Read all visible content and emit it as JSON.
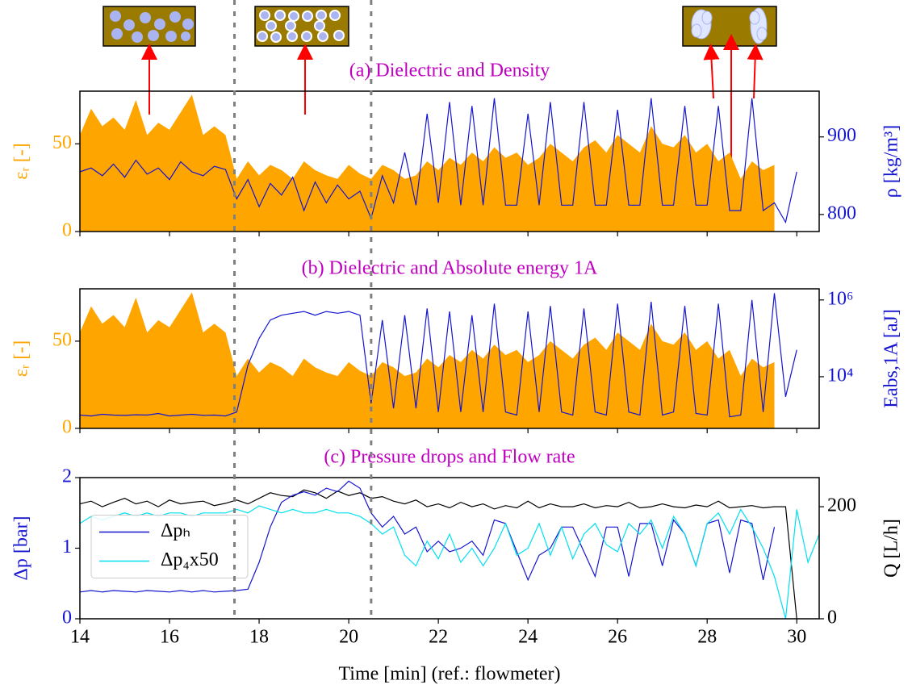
{
  "chart_data": [
    {
      "type": "line",
      "title": "(a) Dielectric and Density",
      "title_color": "#c000c0",
      "ylabel": "εᵣ [-]",
      "y2label": "ρ [kg/m³]",
      "x": [
        14,
        14.25,
        14.5,
        14.75,
        15,
        15.25,
        15.5,
        15.75,
        16,
        16.25,
        16.5,
        16.75,
        17,
        17.25,
        17.5,
        17.75,
        18,
        18.25,
        18.5,
        18.75,
        19,
        19.25,
        19.5,
        19.75,
        20,
        20.25,
        20.5,
        20.75,
        21,
        21.25,
        21.5,
        21.75,
        22,
        22.25,
        22.5,
        22.75,
        23,
        23.25,
        23.5,
        23.75,
        24,
        24.25,
        24.5,
        24.75,
        25,
        25.25,
        25.5,
        25.75,
        26,
        26.25,
        26.5,
        26.75,
        27,
        27.25,
        27.5,
        27.75,
        28,
        28.25,
        28.5,
        28.75,
        29,
        29.25,
        29.5,
        29.75,
        30,
        30.25,
        30.5
      ],
      "xlim": [
        14,
        30.5
      ],
      "ylim": [
        0,
        80
      ],
      "yticks": [
        0,
        50
      ],
      "y2lim": [
        778,
        959
      ],
      "y2ticks": [
        800,
        900
      ],
      "vlines": [
        17.45,
        20.5
      ],
      "series": [
        {
          "color": "#ffa500",
          "fill": true,
          "values": [
            55,
            70,
            60,
            65,
            58,
            75,
            55,
            62,
            58,
            68,
            78,
            55,
            60,
            55,
            30,
            40,
            32,
            38,
            35,
            30,
            40,
            35,
            32,
            30,
            38,
            33,
            30,
            38,
            35,
            30,
            32,
            40,
            35,
            42,
            38,
            45,
            40,
            48,
            42,
            45,
            38,
            42,
            50,
            45,
            40,
            48,
            52,
            45,
            55,
            50,
            45,
            60,
            50,
            48,
            55,
            45,
            50,
            40,
            45,
            30,
            40,
            35,
            38,
            null,
            null,
            null,
            null
          ]
        },
        {
          "color": "#1515d0",
          "axis": "y2",
          "values": [
            855,
            860,
            850,
            865,
            848,
            870,
            852,
            860,
            845,
            868,
            855,
            850,
            862,
            858,
            820,
            845,
            810,
            840,
            825,
            848,
            805,
            842,
            815,
            838,
            820,
            830,
            795,
            850,
            815,
            880,
            812,
            930,
            815,
            945,
            812,
            940,
            812,
            950,
            812,
            812,
            930,
            812,
            945,
            812,
            812,
            945,
            812,
            812,
            935,
            812,
            812,
            950,
            812,
            812,
            940,
            812,
            812,
            940,
            805,
            805,
            950,
            805,
            815,
            790,
            855,
            null,
            null
          ]
        }
      ]
    },
    {
      "type": "line",
      "title": "(b) Dielectric and Absolute energy 1A",
      "title_color": "#c000c0",
      "ylabel": "εᵣ [-]",
      "y2label": "Eabs,1A [aJ]",
      "x": [
        14,
        14.25,
        14.5,
        14.75,
        15,
        15.25,
        15.5,
        15.75,
        16,
        16.25,
        16.5,
        16.75,
        17,
        17.25,
        17.5,
        17.75,
        18,
        18.25,
        18.5,
        18.75,
        19,
        19.25,
        19.5,
        19.75,
        20,
        20.25,
        20.5,
        20.75,
        21,
        21.25,
        21.5,
        21.75,
        22,
        22.25,
        22.5,
        22.75,
        23,
        23.25,
        23.5,
        23.75,
        24,
        24.25,
        24.5,
        24.75,
        25,
        25.25,
        25.5,
        25.75,
        26,
        26.25,
        26.5,
        26.75,
        27,
        27.25,
        27.5,
        27.75,
        28,
        28.25,
        28.5,
        28.75,
        29,
        29.25,
        29.5,
        29.75,
        30,
        30.25,
        30.5
      ],
      "xlim": [
        14,
        30.5
      ],
      "ylim": [
        0,
        80
      ],
      "yticks": [
        0,
        50
      ],
      "y2lim": [
        450,
        1950000
      ],
      "y2log": true,
      "y2ticks": [
        {
          "value": 10000,
          "label": "10⁴"
        },
        {
          "value": 1000000,
          "label": "10⁶"
        }
      ],
      "series": [
        {
          "color": "#ffa500",
          "fill": true,
          "values": [
            55,
            70,
            60,
            65,
            58,
            75,
            55,
            62,
            58,
            68,
            78,
            55,
            60,
            55,
            30,
            40,
            32,
            38,
            35,
            30,
            40,
            35,
            32,
            30,
            38,
            33,
            30,
            38,
            35,
            30,
            32,
            40,
            35,
            42,
            38,
            45,
            40,
            48,
            42,
            45,
            38,
            42,
            50,
            45,
            40,
            48,
            52,
            45,
            55,
            50,
            45,
            60,
            50,
            48,
            55,
            45,
            50,
            40,
            45,
            30,
            40,
            35,
            38,
            null,
            null,
            null,
            null
          ]
        },
        {
          "color": "#1515d0",
          "axis": "y2",
          "values": [
            1000,
            950,
            1050,
            1000,
            980,
            1020,
            1000,
            1100,
            950,
            1000,
            1050,
            980,
            1000,
            950,
            1200,
            20000,
            100000,
            300000,
            400000,
            450000,
            500000,
            400000,
            500000,
            450000,
            500000,
            400000,
            2000,
            300000,
            1500,
            400000,
            1500,
            600000,
            1200,
            500000,
            1200,
            400000,
            1200,
            800000,
            1200,
            1000,
            500000,
            1200,
            700000,
            1200,
            1000,
            600000,
            1200,
            1000,
            800000,
            1200,
            1000,
            900000,
            1000,
            1200,
            700000,
            1100,
            1000,
            800000,
            900,
            1000,
            1000000,
            1200,
            1500000,
            3000,
            50000,
            null,
            null
          ]
        }
      ]
    },
    {
      "type": "line",
      "title": "(c) Pressure drops and Flow rate",
      "title_color": "#c000c0",
      "ylabel": "Δp [bar]",
      "y2label": "Q [L/h]",
      "xlabel": "Time [min] (ref.: flowmeter)",
      "x": [
        14,
        14.25,
        14.5,
        14.75,
        15,
        15.25,
        15.5,
        15.75,
        16,
        16.25,
        16.5,
        16.75,
        17,
        17.25,
        17.5,
        17.75,
        18,
        18.25,
        18.5,
        18.75,
        19,
        19.25,
        19.5,
        19.75,
        20,
        20.25,
        20.5,
        20.75,
        21,
        21.25,
        21.5,
        21.75,
        22,
        22.25,
        22.5,
        22.75,
        23,
        23.25,
        23.5,
        23.75,
        24,
        24.25,
        24.5,
        24.75,
        25,
        25.25,
        25.5,
        25.75,
        26,
        26.25,
        26.5,
        26.75,
        27,
        27.25,
        27.5,
        27.75,
        28,
        28.25,
        28.5,
        28.75,
        29,
        29.25,
        29.5,
        29.75,
        30,
        30.25,
        30.5
      ],
      "xlim": [
        14,
        30.5
      ],
      "xticks": [
        14,
        16,
        18,
        20,
        22,
        24,
        26,
        28,
        30
      ],
      "ylim": [
        0,
        2
      ],
      "yticks": [
        0,
        1,
        2
      ],
      "y2lim": [
        0,
        252
      ],
      "y2ticks": [
        0,
        200
      ],
      "legend": "center left",
      "series": [
        {
          "color": "#000000",
          "axis": "y2",
          "values": [
            205,
            210,
            200,
            208,
            215,
            205,
            210,
            200,
            212,
            205,
            208,
            210,
            202,
            206,
            212,
            205,
            215,
            225,
            220,
            218,
            230,
            225,
            215,
            228,
            220,
            225,
            215,
            218,
            210,
            205,
            212,
            200,
            205,
            198,
            208,
            200,
            205,
            196,
            202,
            198,
            210,
            198,
            205,
            200,
            200,
            205,
            198,
            202,
            200,
            208,
            198,
            200,
            205,
            200,
            198,
            203,
            200,
            210,
            198,
            200,
            202,
            198,
            200,
            200,
            0,
            null,
            null
          ]
        },
        {
          "name": "Δpₕ",
          "color": "#1515d0",
          "values": [
            0.38,
            0.4,
            0.38,
            0.4,
            0.39,
            0.38,
            0.4,
            0.39,
            0.38,
            0.4,
            0.38,
            0.4,
            0.38,
            0.39,
            0.4,
            0.42,
            0.8,
            1.3,
            1.65,
            1.75,
            1.8,
            1.75,
            1.85,
            1.8,
            1.95,
            1.85,
            1.5,
            1.3,
            1.45,
            1.2,
            1.3,
            0.95,
            1.1,
            0.95,
            1.0,
            1.1,
            0.9,
            1.4,
            1.35,
            0.95,
            0.55,
            0.9,
            1.0,
            1.3,
            1.3,
            0.95,
            0.6,
            1.3,
            1.3,
            0.6,
            1.35,
            1.35,
            0.75,
            1.4,
            1.2,
            0.75,
            1.35,
            1.4,
            0.65,
            1.4,
            1.35,
            0.55,
            1.3,
            null,
            null,
            null,
            null
          ]
        },
        {
          "name": "Δp₄x50",
          "color": "#00e0f0",
          "values": [
            1.35,
            1.45,
            1.4,
            1.45,
            1.5,
            1.45,
            1.5,
            1.45,
            1.5,
            1.5,
            1.45,
            1.5,
            1.5,
            1.5,
            1.55,
            1.5,
            1.6,
            1.55,
            1.5,
            1.55,
            1.5,
            1.5,
            1.55,
            1.5,
            1.5,
            1.45,
            1.35,
            1.2,
            1.3,
            0.9,
            0.75,
            1.1,
            0.85,
            1.2,
            0.8,
            1.0,
            0.75,
            1.0,
            1.35,
            0.9,
            1.0,
            1.35,
            0.9,
            1.3,
            0.85,
            1.2,
            1.35,
            1.05,
            0.95,
            1.35,
            1.2,
            1.4,
            1.0,
            1.45,
            1.2,
            0.75,
            1.35,
            1.5,
            1.2,
            1.55,
            1.3,
            1.0,
            0.6,
            0.0,
            1.55,
            0.8,
            1.2
          ]
        }
      ]
    }
  ]
}
